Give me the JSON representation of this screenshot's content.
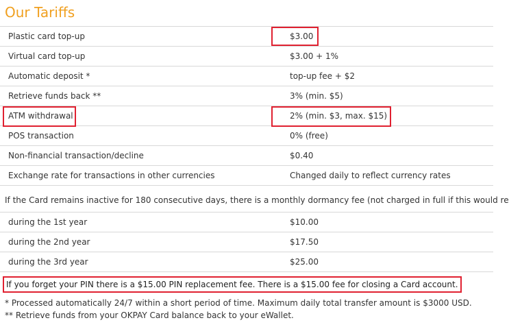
{
  "title": "Our Tariffs",
  "tariffs": [
    {
      "name": "Plastic card top-up",
      "value": "$3.00"
    },
    {
      "name": "Virtual card top-up",
      "value": "$3.00 + 1%"
    },
    {
      "name": "Automatic deposit *",
      "value": "top-up fee + $2"
    },
    {
      "name": "Retrieve funds back **",
      "value": "3% (min. $5)"
    },
    {
      "name": "ATM withdrawal",
      "value": "2% (min. $3, max. $15)"
    },
    {
      "name": "POS transaction",
      "value": "0% (free)"
    },
    {
      "name": "Non-financial transaction/decline",
      "value": "$0.40"
    },
    {
      "name": "Exchange rate for transactions in other currencies",
      "value": "Changed daily to reflect currency rates"
    }
  ],
  "dormancy_note": "If the Card remains inactive for 180 consecutive days, there is a monthly dormancy fee (not charged in full if this would re",
  "dormancy": [
    {
      "period": "during the 1st year",
      "fee": "$10.00"
    },
    {
      "period": "during the 2nd year",
      "fee": "$17.50"
    },
    {
      "period": "during the 3rd year",
      "fee": "$25.00"
    }
  ],
  "pin_note": "If you forget your PIN there is a $15.00 PIN replacement fee. There is a $15.00 fee for closing a Card account.",
  "footnotes": [
    "* Processed automatically 24/7 within a short period of time. Maximum daily total transfer amount is $3000 USD.",
    "** Retrieve funds from your OKPAY Card balance back to your eWallet."
  ],
  "colors": {
    "title": "#f0a020",
    "highlight": "#e02030",
    "divider": "#d8d8d8"
  }
}
